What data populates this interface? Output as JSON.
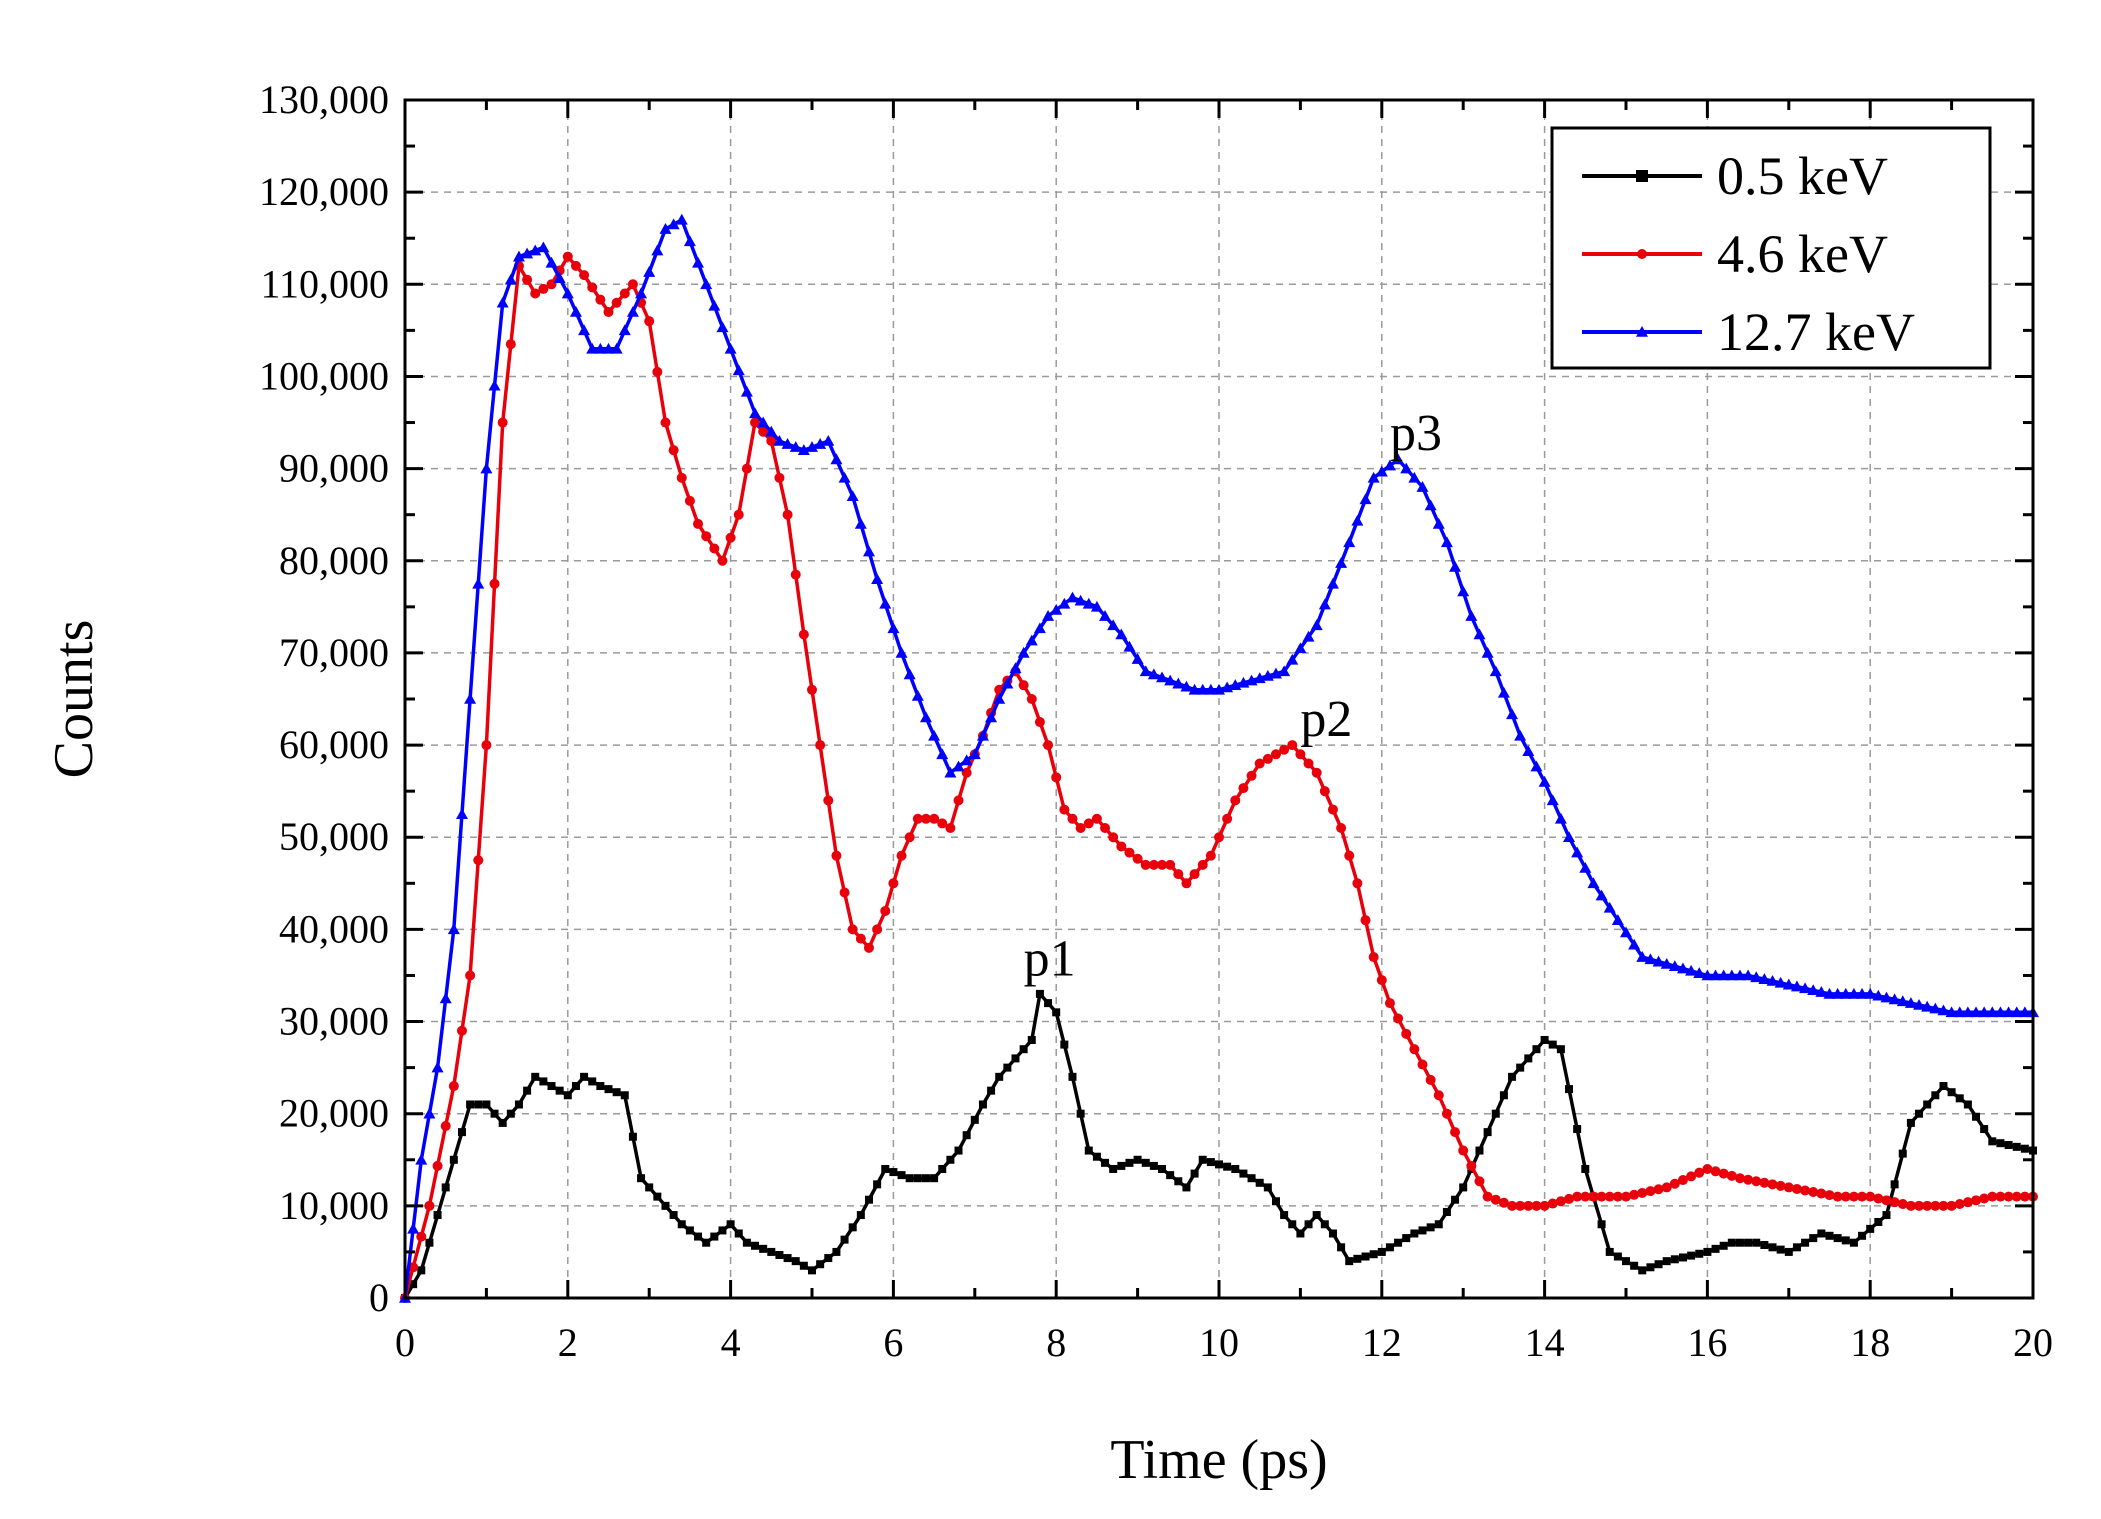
{
  "chart_data": {
    "type": "line",
    "title": "",
    "xlabel": "Time (ps)",
    "ylabel": "Counts",
    "xlim": [
      0,
      20
    ],
    "ylim": [
      0,
      130000
    ],
    "xticks": [
      0,
      2,
      4,
      6,
      8,
      10,
      12,
      14,
      16,
      18,
      20
    ],
    "yticks": [
      0,
      10000,
      20000,
      30000,
      40000,
      50000,
      60000,
      70000,
      80000,
      90000,
      100000,
      110000,
      120000,
      130000
    ],
    "xtick_labels": [
      "0",
      "2",
      "4",
      "6",
      "8",
      "10",
      "12",
      "14",
      "16",
      "18",
      "20"
    ],
    "ytick_labels": [
      "0",
      "10,000",
      "20,000",
      "30,000",
      "40,000",
      "50,000",
      "60,000",
      "70,000",
      "80,000",
      "90,000",
      "100,000",
      "110,000",
      "120,000",
      "130,000"
    ],
    "grid": true,
    "legend_position": "top-right",
    "series": [
      {
        "name": "0.5 keV",
        "color": "#000000",
        "marker": "square",
        "points": [
          [
            0,
            0
          ],
          [
            0.2,
            3000
          ],
          [
            0.4,
            9000
          ],
          [
            0.6,
            15000
          ],
          [
            0.8,
            21000
          ],
          [
            1.0,
            21000
          ],
          [
            1.2,
            19000
          ],
          [
            1.4,
            21000
          ],
          [
            1.6,
            24000
          ],
          [
            1.8,
            23000
          ],
          [
            2.0,
            22000
          ],
          [
            2.2,
            24000
          ],
          [
            2.4,
            23000
          ],
          [
            2.7,
            22000
          ],
          [
            2.9,
            13000
          ],
          [
            3.1,
            11000
          ],
          [
            3.4,
            8000
          ],
          [
            3.7,
            6000
          ],
          [
            4.0,
            8000
          ],
          [
            4.2,
            6000
          ],
          [
            4.5,
            5000
          ],
          [
            4.8,
            4000
          ],
          [
            5.0,
            3000
          ],
          [
            5.3,
            5000
          ],
          [
            5.6,
            9000
          ],
          [
            5.9,
            14000
          ],
          [
            6.2,
            13000
          ],
          [
            6.5,
            13000
          ],
          [
            6.8,
            16000
          ],
          [
            7.1,
            21000
          ],
          [
            7.3,
            24000
          ],
          [
            7.5,
            26000
          ],
          [
            7.7,
            28000
          ],
          [
            7.8,
            33000
          ],
          [
            8.0,
            31000
          ],
          [
            8.2,
            24000
          ],
          [
            8.4,
            16000
          ],
          [
            8.7,
            14000
          ],
          [
            9.0,
            15000
          ],
          [
            9.3,
            14000
          ],
          [
            9.6,
            12000
          ],
          [
            9.8,
            15000
          ],
          [
            10.2,
            14000
          ],
          [
            10.6,
            12000
          ],
          [
            10.8,
            9000
          ],
          [
            11.0,
            7000
          ],
          [
            11.2,
            9000
          ],
          [
            11.4,
            7000
          ],
          [
            11.6,
            4000
          ],
          [
            12.0,
            5000
          ],
          [
            12.4,
            7000
          ],
          [
            12.7,
            8000
          ],
          [
            13.0,
            12000
          ],
          [
            13.3,
            18000
          ],
          [
            13.6,
            24000
          ],
          [
            14.0,
            28000
          ],
          [
            14.2,
            27000
          ],
          [
            14.5,
            14000
          ],
          [
            14.8,
            5000
          ],
          [
            15.2,
            3000
          ],
          [
            15.5,
            4000
          ],
          [
            16.0,
            5000
          ],
          [
            16.3,
            6000
          ],
          [
            16.6,
            6000
          ],
          [
            17.0,
            5000
          ],
          [
            17.4,
            7000
          ],
          [
            17.8,
            6000
          ],
          [
            18.2,
            9000
          ],
          [
            18.5,
            19000
          ],
          [
            18.9,
            23000
          ],
          [
            19.2,
            21000
          ],
          [
            19.5,
            17000
          ],
          [
            20.0,
            16000
          ]
        ]
      },
      {
        "name": "4.6 keV",
        "color": "#e8000b",
        "marker": "circle",
        "points": [
          [
            0,
            0
          ],
          [
            0.3,
            10000
          ],
          [
            0.6,
            23000
          ],
          [
            0.8,
            35000
          ],
          [
            1.0,
            60000
          ],
          [
            1.2,
            95000
          ],
          [
            1.4,
            112000
          ],
          [
            1.6,
            109000
          ],
          [
            1.8,
            110000
          ],
          [
            2.0,
            113000
          ],
          [
            2.2,
            111000
          ],
          [
            2.5,
            107000
          ],
          [
            2.8,
            110000
          ],
          [
            3.0,
            106000
          ],
          [
            3.2,
            95000
          ],
          [
            3.4,
            89000
          ],
          [
            3.6,
            84000
          ],
          [
            3.9,
            80000
          ],
          [
            4.1,
            85000
          ],
          [
            4.3,
            95000
          ],
          [
            4.5,
            93000
          ],
          [
            4.7,
            85000
          ],
          [
            4.9,
            72000
          ],
          [
            5.1,
            60000
          ],
          [
            5.3,
            48000
          ],
          [
            5.5,
            40000
          ],
          [
            5.7,
            38000
          ],
          [
            5.9,
            42000
          ],
          [
            6.1,
            48000
          ],
          [
            6.3,
            52000
          ],
          [
            6.5,
            52000
          ],
          [
            6.7,
            51000
          ],
          [
            6.9,
            57000
          ],
          [
            7.1,
            61000
          ],
          [
            7.3,
            66000
          ],
          [
            7.5,
            68000
          ],
          [
            7.7,
            65000
          ],
          [
            7.9,
            60000
          ],
          [
            8.1,
            53000
          ],
          [
            8.3,
            51000
          ],
          [
            8.5,
            52000
          ],
          [
            8.8,
            49000
          ],
          [
            9.1,
            47000
          ],
          [
            9.4,
            47000
          ],
          [
            9.6,
            45000
          ],
          [
            9.9,
            48000
          ],
          [
            10.2,
            54000
          ],
          [
            10.5,
            58000
          ],
          [
            10.9,
            60000
          ],
          [
            11.2,
            57000
          ],
          [
            11.5,
            51000
          ],
          [
            11.7,
            45000
          ],
          [
            11.9,
            37000
          ],
          [
            12.1,
            32000
          ],
          [
            12.4,
            27000
          ],
          [
            12.7,
            22000
          ],
          [
            13.0,
            16000
          ],
          [
            13.3,
            11000
          ],
          [
            13.6,
            10000
          ],
          [
            14.0,
            10000
          ],
          [
            14.4,
            11000
          ],
          [
            15.0,
            11000
          ],
          [
            15.5,
            12000
          ],
          [
            16.0,
            14000
          ],
          [
            16.4,
            13000
          ],
          [
            17.0,
            12000
          ],
          [
            17.6,
            11000
          ],
          [
            18.0,
            11000
          ],
          [
            18.5,
            10000
          ],
          [
            19.0,
            10000
          ],
          [
            19.5,
            11000
          ],
          [
            20.0,
            11000
          ]
        ]
      },
      {
        "name": "12.7 keV",
        "color": "#0000ff",
        "marker": "triangle",
        "points": [
          [
            0,
            0
          ],
          [
            0.2,
            15000
          ],
          [
            0.4,
            25000
          ],
          [
            0.6,
            40000
          ],
          [
            0.8,
            65000
          ],
          [
            1.0,
            90000
          ],
          [
            1.2,
            108000
          ],
          [
            1.4,
            113000
          ],
          [
            1.7,
            114000
          ],
          [
            2.0,
            109000
          ],
          [
            2.3,
            103000
          ],
          [
            2.6,
            103000
          ],
          [
            2.9,
            109000
          ],
          [
            3.2,
            116000
          ],
          [
            3.4,
            117000
          ],
          [
            3.7,
            110000
          ],
          [
            4.0,
            103000
          ],
          [
            4.3,
            96000
          ],
          [
            4.6,
            93000
          ],
          [
            4.9,
            92000
          ],
          [
            5.2,
            93000
          ],
          [
            5.5,
            87000
          ],
          [
            5.8,
            78000
          ],
          [
            6.1,
            70000
          ],
          [
            6.4,
            63000
          ],
          [
            6.7,
            57000
          ],
          [
            7.0,
            59000
          ],
          [
            7.3,
            65000
          ],
          [
            7.6,
            70000
          ],
          [
            7.9,
            74000
          ],
          [
            8.2,
            76000
          ],
          [
            8.5,
            75000
          ],
          [
            8.8,
            72000
          ],
          [
            9.1,
            68000
          ],
          [
            9.4,
            67000
          ],
          [
            9.7,
            66000
          ],
          [
            10.0,
            66000
          ],
          [
            10.4,
            67000
          ],
          [
            10.8,
            68000
          ],
          [
            11.2,
            73000
          ],
          [
            11.6,
            82000
          ],
          [
            11.9,
            89000
          ],
          [
            12.2,
            91000
          ],
          [
            12.5,
            88000
          ],
          [
            12.8,
            82000
          ],
          [
            13.1,
            74000
          ],
          [
            13.4,
            68000
          ],
          [
            13.7,
            61000
          ],
          [
            14.0,
            56000
          ],
          [
            14.3,
            50000
          ],
          [
            14.6,
            45000
          ],
          [
            14.9,
            41000
          ],
          [
            15.2,
            37000
          ],
          [
            15.6,
            36000
          ],
          [
            16.0,
            35000
          ],
          [
            16.5,
            35000
          ],
          [
            17.0,
            34000
          ],
          [
            17.5,
            33000
          ],
          [
            18.0,
            33000
          ],
          [
            18.5,
            32000
          ],
          [
            19.0,
            31000
          ],
          [
            19.5,
            31000
          ],
          [
            20.0,
            31000
          ]
        ]
      }
    ],
    "annotations": [
      {
        "text": "p1",
        "x": 7.6,
        "y": 35000
      },
      {
        "text": "p2",
        "x": 11.0,
        "y": 61000
      },
      {
        "text": "p3",
        "x": 12.1,
        "y": 92000
      }
    ]
  }
}
